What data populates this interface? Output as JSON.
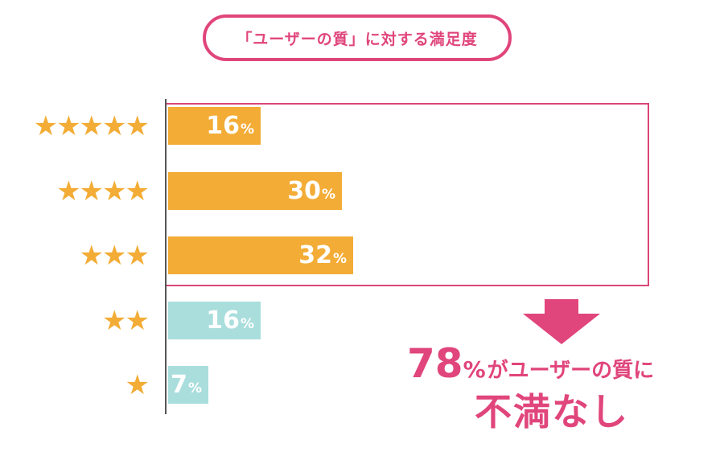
{
  "chart_data": {
    "type": "bar",
    "orientation": "horizontal",
    "title": "「ユーザーの質」に対する満足度",
    "categories": [
      "★★★★★",
      "★★★★",
      "★★★",
      "★★",
      "★"
    ],
    "values": [
      16,
      30,
      32,
      16,
      7
    ],
    "value_labels": [
      "16",
      "30",
      "32",
      "16",
      "7"
    ],
    "unit": "%",
    "xlim": [
      0,
      100
    ],
    "grid": false,
    "legend": "none",
    "colors": {
      "satisfied": "#f3ac36",
      "unsatisfied": "#a9dedd",
      "accent": "#e0457b",
      "star": "#f3ac36"
    },
    "bar_groups": [
      "satisfied",
      "satisfied",
      "satisfied",
      "unsatisfied",
      "unsatisfied"
    ],
    "highlighted_categories": [
      "★★★★★",
      "★★★★",
      "★★★"
    ],
    "annotation": {
      "value": "78",
      "unit": "%",
      "line1_suffix": "がユーザーの質に",
      "line2": "不満なし"
    }
  }
}
